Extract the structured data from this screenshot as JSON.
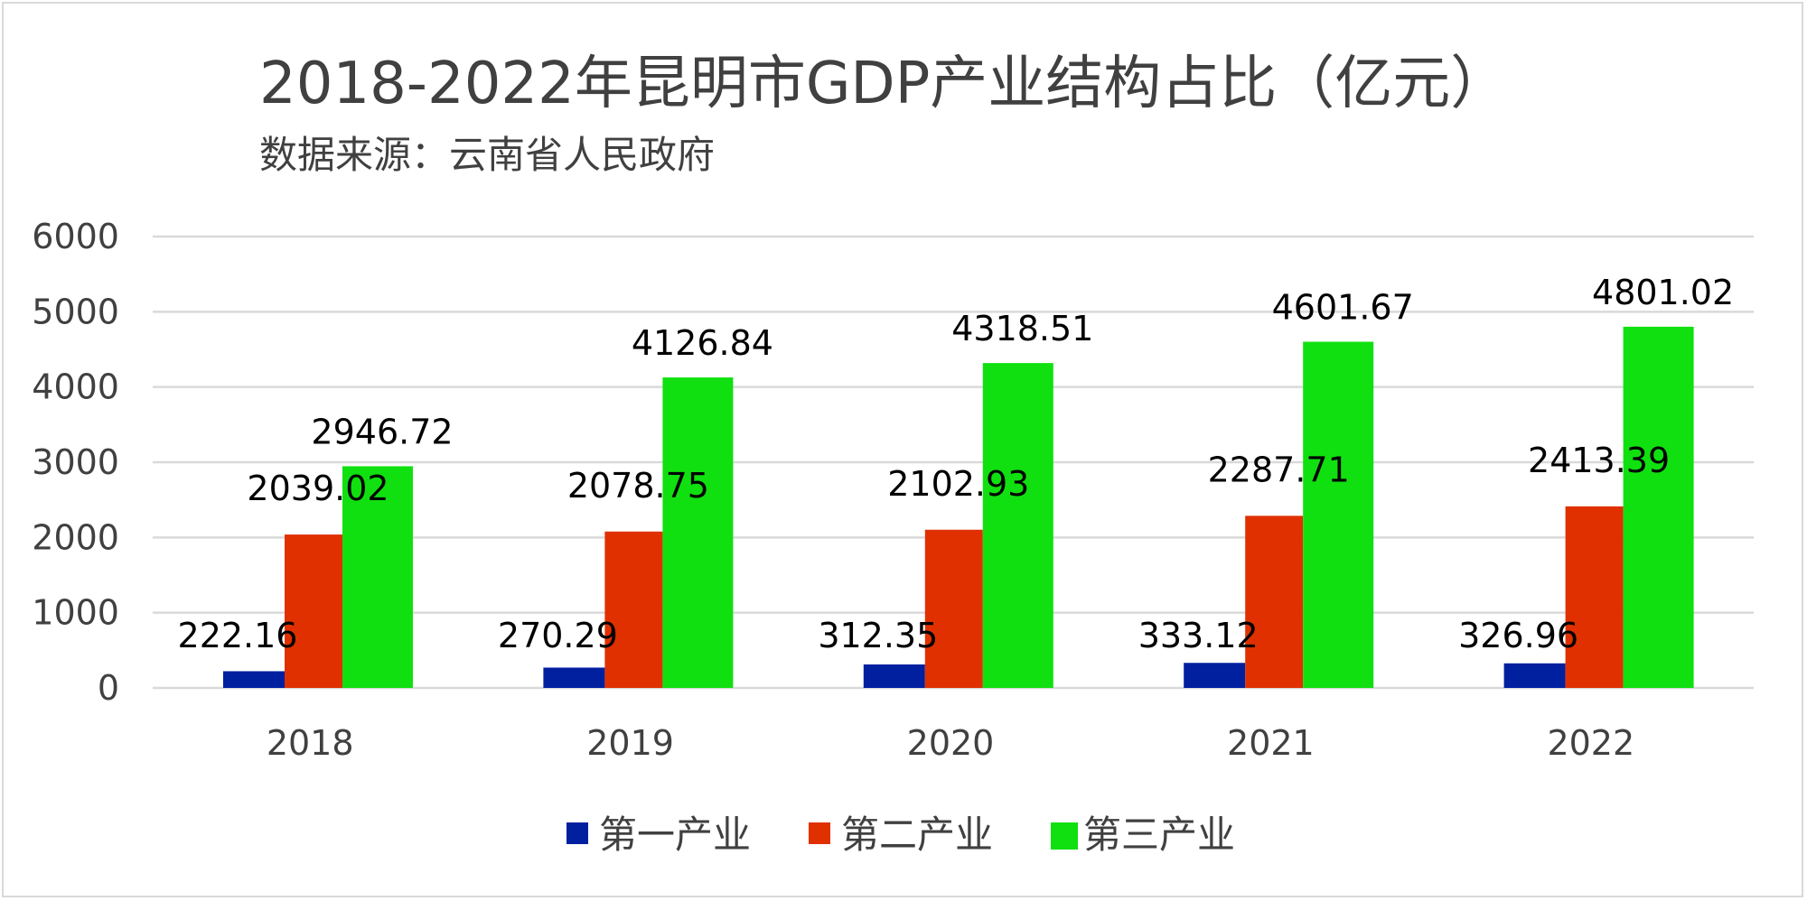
{
  "chart_data": {
    "type": "bar",
    "title": "2018-2022年昆明市GDP产业结构占比（亿元）",
    "subtitle": "数据来源：云南省人民政府",
    "categories": [
      "2018",
      "2019",
      "2020",
      "2021",
      "2022"
    ],
    "series": [
      {
        "name": "第一产业",
        "color": "#0020a0",
        "values": [
          222.16,
          270.29,
          312.35,
          333.12,
          326.96
        ]
      },
      {
        "name": "第二产业",
        "color": "#e03000",
        "values": [
          2039.02,
          2078.75,
          2102.93,
          2287.71,
          2413.39
        ]
      },
      {
        "name": "第三产业",
        "color": "#10e010",
        "values": [
          2946.72,
          4126.84,
          4318.51,
          4601.67,
          4801.02
        ]
      }
    ],
    "data_labels": [
      [
        "222.16",
        "270.29",
        "312.35",
        "333.12",
        "326.96"
      ],
      [
        "2039.02",
        "2078.75",
        "2102.93",
        "2287.71",
        "2413.39"
      ],
      [
        "2946.72",
        "4126.84",
        "4318.51",
        "4601.67",
        "4801.02"
      ]
    ],
    "ylim": [
      0,
      6000
    ],
    "yticks": [
      0,
      1000,
      2000,
      3000,
      4000,
      5000,
      6000
    ],
    "ytick_labels": [
      "0",
      "1000",
      "2000",
      "3000",
      "4000",
      "5000",
      "6000"
    ],
    "grid": true,
    "legend_position": "bottom-center",
    "xlabel": "",
    "ylabel": ""
  }
}
